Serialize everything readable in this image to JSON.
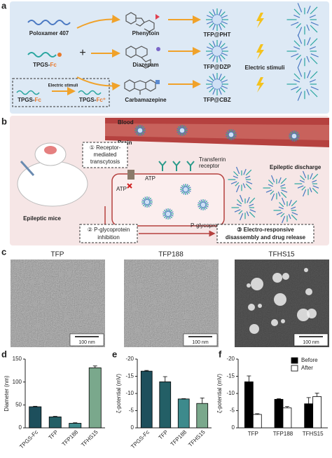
{
  "panel_a": {
    "label": "a",
    "poloxamer": "Poloxamer 407",
    "plus": "+",
    "tpgs": {
      "prefix": "TPGS-",
      "suffix": "Fc"
    },
    "drugs": [
      "Phenytoin",
      "Diazepam",
      "Carbamazepine"
    ],
    "products": [
      "TFP@PHT",
      "TFP@DZP",
      "TFP@CBZ"
    ],
    "stimulus": "Electric stimuli",
    "inset": {
      "stimulus": "Electric stimuli",
      "before": {
        "prefix": "TPGS-",
        "suffix": "Fc"
      },
      "after": {
        "prefix": "TPGS-",
        "suffix": "Fc⁺"
      }
    }
  },
  "panel_b": {
    "label": "b",
    "blood": "Blood",
    "brain": "Brain",
    "step1": [
      "① Receptor-",
      "mediated",
      "transcytosis"
    ],
    "transferrin": [
      "Transferrin",
      "receptor"
    ],
    "discharge": "Epileptic discharge",
    "atp": [
      "ATP",
      "ATP"
    ],
    "pgp": "P-glycoprotein",
    "mice": "Epileptic mice",
    "step2": [
      "② P-glycoprotein",
      "inhibition"
    ],
    "step3": [
      "③ Electro-responsive",
      "disassembly and drug release"
    ]
  },
  "panel_c": {
    "label": "c",
    "images": [
      {
        "title": "TFP",
        "scale": "100 nm"
      },
      {
        "title": "TFP188",
        "scale": "100 nm"
      },
      {
        "title": "TFHS15",
        "scale": "100 nm"
      }
    ]
  },
  "chart_data": [
    {
      "label": "d",
      "type": "bar",
      "ylabel": "Diameter (nm)",
      "categories": [
        "TPGS-Fc",
        "TFP",
        "TFP188",
        "TFHS15"
      ],
      "values": [
        46,
        24,
        10,
        131
      ],
      "errors": [
        1,
        1,
        1,
        4
      ],
      "colors": [
        "#1d4f5c",
        "#235f66",
        "#3d8a8c",
        "#7aa88c"
      ],
      "ylim": [
        0,
        150
      ],
      "yticks": [
        0,
        50,
        100,
        150
      ]
    },
    {
      "label": "e",
      "type": "bar",
      "ylabel": "ζ-potential (mV)",
      "categories": [
        "TPGS-Fc",
        "TFP",
        "TFP188",
        "TFHS15"
      ],
      "values": [
        -16.5,
        -13.4,
        -8.4,
        -7.1
      ],
      "errors": [
        0.2,
        1.5,
        0.1,
        1.6
      ],
      "colors": [
        "#1d4f5c",
        "#235f66",
        "#3d8a8c",
        "#7aa88c"
      ],
      "ylim": [
        0,
        -20
      ],
      "yticks": [
        0,
        -5,
        -10,
        -15,
        -20
      ]
    },
    {
      "label": "f",
      "type": "bar",
      "ylabel": "ζ-potential (mV)",
      "categories": [
        "TFP",
        "TFP188",
        "TFHS15"
      ],
      "series": [
        {
          "name": "Before",
          "color": "#000000",
          "values": [
            -13.4,
            -8.3,
            -7.0
          ],
          "errors": [
            1.7,
            0.2,
            1.8
          ]
        },
        {
          "name": "After",
          "color": "#ffffff",
          "values": [
            -3.9,
            -5.8,
            -9.1
          ],
          "errors": [
            0.2,
            0.4,
            1.0
          ]
        }
      ],
      "ylim": [
        0,
        -20
      ],
      "yticks": [
        0,
        -5,
        -10,
        -15,
        -20
      ],
      "legend": "upper right"
    }
  ]
}
